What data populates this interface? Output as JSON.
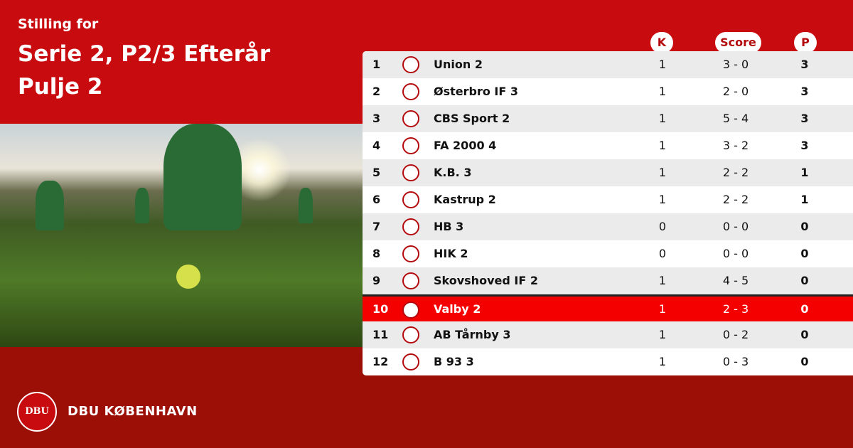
{
  "header": {
    "subtitle": "Stilling for",
    "title_line1": "Serie 2, P2/3 Efterår",
    "title_line2": "Pulje 2"
  },
  "columns": {
    "k": "K",
    "score": "Score",
    "p": "P"
  },
  "colors": {
    "top": "#c80b0e",
    "bottom": "#9c0f07",
    "highlight": "#f50000"
  },
  "rows": [
    {
      "pos": "1",
      "name": "Union 2",
      "k": "1",
      "score": "3 - 0",
      "p": "3"
    },
    {
      "pos": "2",
      "name": "Østerbro IF 3",
      "k": "1",
      "score": "2 - 0",
      "p": "3"
    },
    {
      "pos": "3",
      "name": "CBS Sport 2",
      "k": "1",
      "score": "5 - 4",
      "p": "3"
    },
    {
      "pos": "4",
      "name": "FA 2000 4",
      "k": "1",
      "score": "3 - 2",
      "p": "3"
    },
    {
      "pos": "5",
      "name": "K.B. 3",
      "k": "1",
      "score": "2 - 2",
      "p": "1"
    },
    {
      "pos": "6",
      "name": "Kastrup 2",
      "k": "1",
      "score": "2 - 2",
      "p": "1"
    },
    {
      "pos": "7",
      "name": "HB 3",
      "k": "0",
      "score": "0 - 0",
      "p": "0"
    },
    {
      "pos": "8",
      "name": "HIK 2",
      "k": "0",
      "score": "0 - 0",
      "p": "0"
    },
    {
      "pos": "9",
      "name": "Skovshoved IF 2",
      "k": "1",
      "score": "4 - 5",
      "p": "0"
    },
    {
      "pos": "10",
      "name": "Valby 2",
      "k": "1",
      "score": "2 - 3",
      "p": "0",
      "highlight": true
    },
    {
      "pos": "11",
      "name": "AB Tårnby 3",
      "k": "1",
      "score": "0 - 2",
      "p": "0"
    },
    {
      "pos": "12",
      "name": "B 93 3",
      "k": "1",
      "score": "0 - 3",
      "p": "0"
    }
  ],
  "footer": {
    "badge_text": "DBU",
    "brand": "DBU KØBENHAVN"
  }
}
